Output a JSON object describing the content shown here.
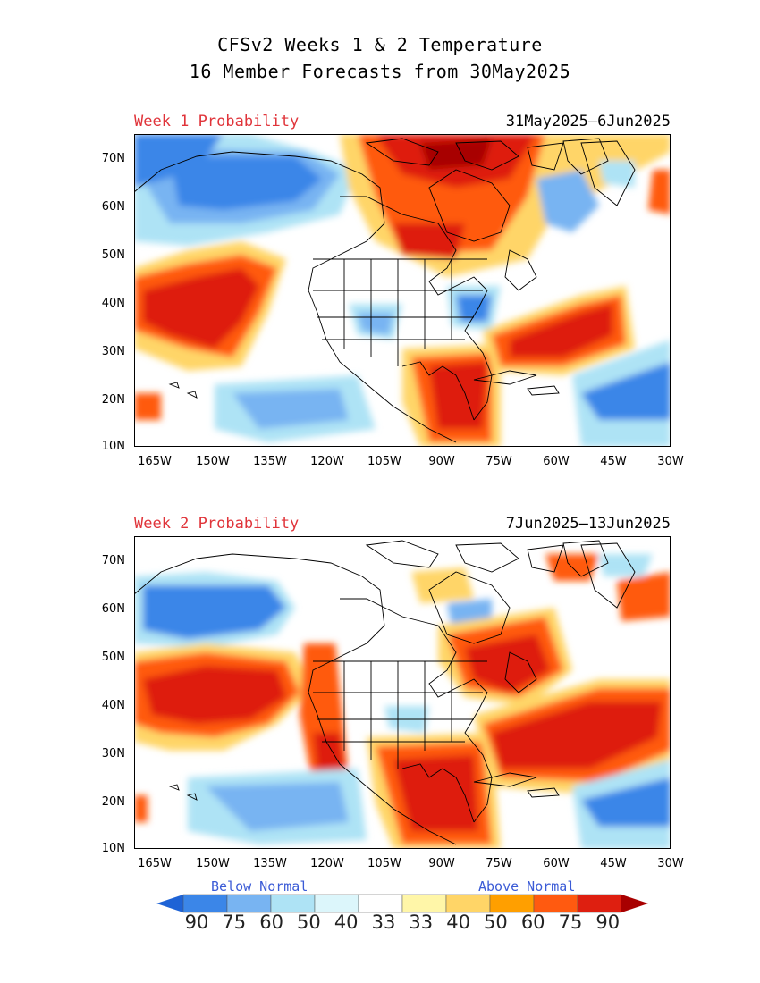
{
  "title_line1": "CFSv2 Weeks 1 & 2 Temperature",
  "title_line2": "16 Member Forecasts from 30May2025",
  "panels": [
    {
      "label": "Week 1 Probability",
      "dates": "31May2025—6Jun2025"
    },
    {
      "label": "Week 2 Probability",
      "dates": "7Jun2025—13Jun2025"
    }
  ],
  "lat_ticks": [
    "70N",
    "60N",
    "50N",
    "40N",
    "30N",
    "20N",
    "10N"
  ],
  "lon_ticks": [
    "165W",
    "150W",
    "135W",
    "120W",
    "105W",
    "90W",
    "75W",
    "60W",
    "45W",
    "30W"
  ],
  "legend": {
    "below_label": "Below Normal",
    "above_label": "Above Normal",
    "values": [
      "90",
      "75",
      "60",
      "50",
      "40",
      "33",
      "33",
      "40",
      "50",
      "60",
      "75",
      "90"
    ],
    "colors": [
      "#1e63d6",
      "#3b86e8",
      "#78b4f2",
      "#aee3f5",
      "#dcf6fb",
      "#ffffff",
      "#fff6a8",
      "#ffd567",
      "#ff9f00",
      "#ff5a10",
      "#de1f10",
      "#a80000"
    ]
  }
}
